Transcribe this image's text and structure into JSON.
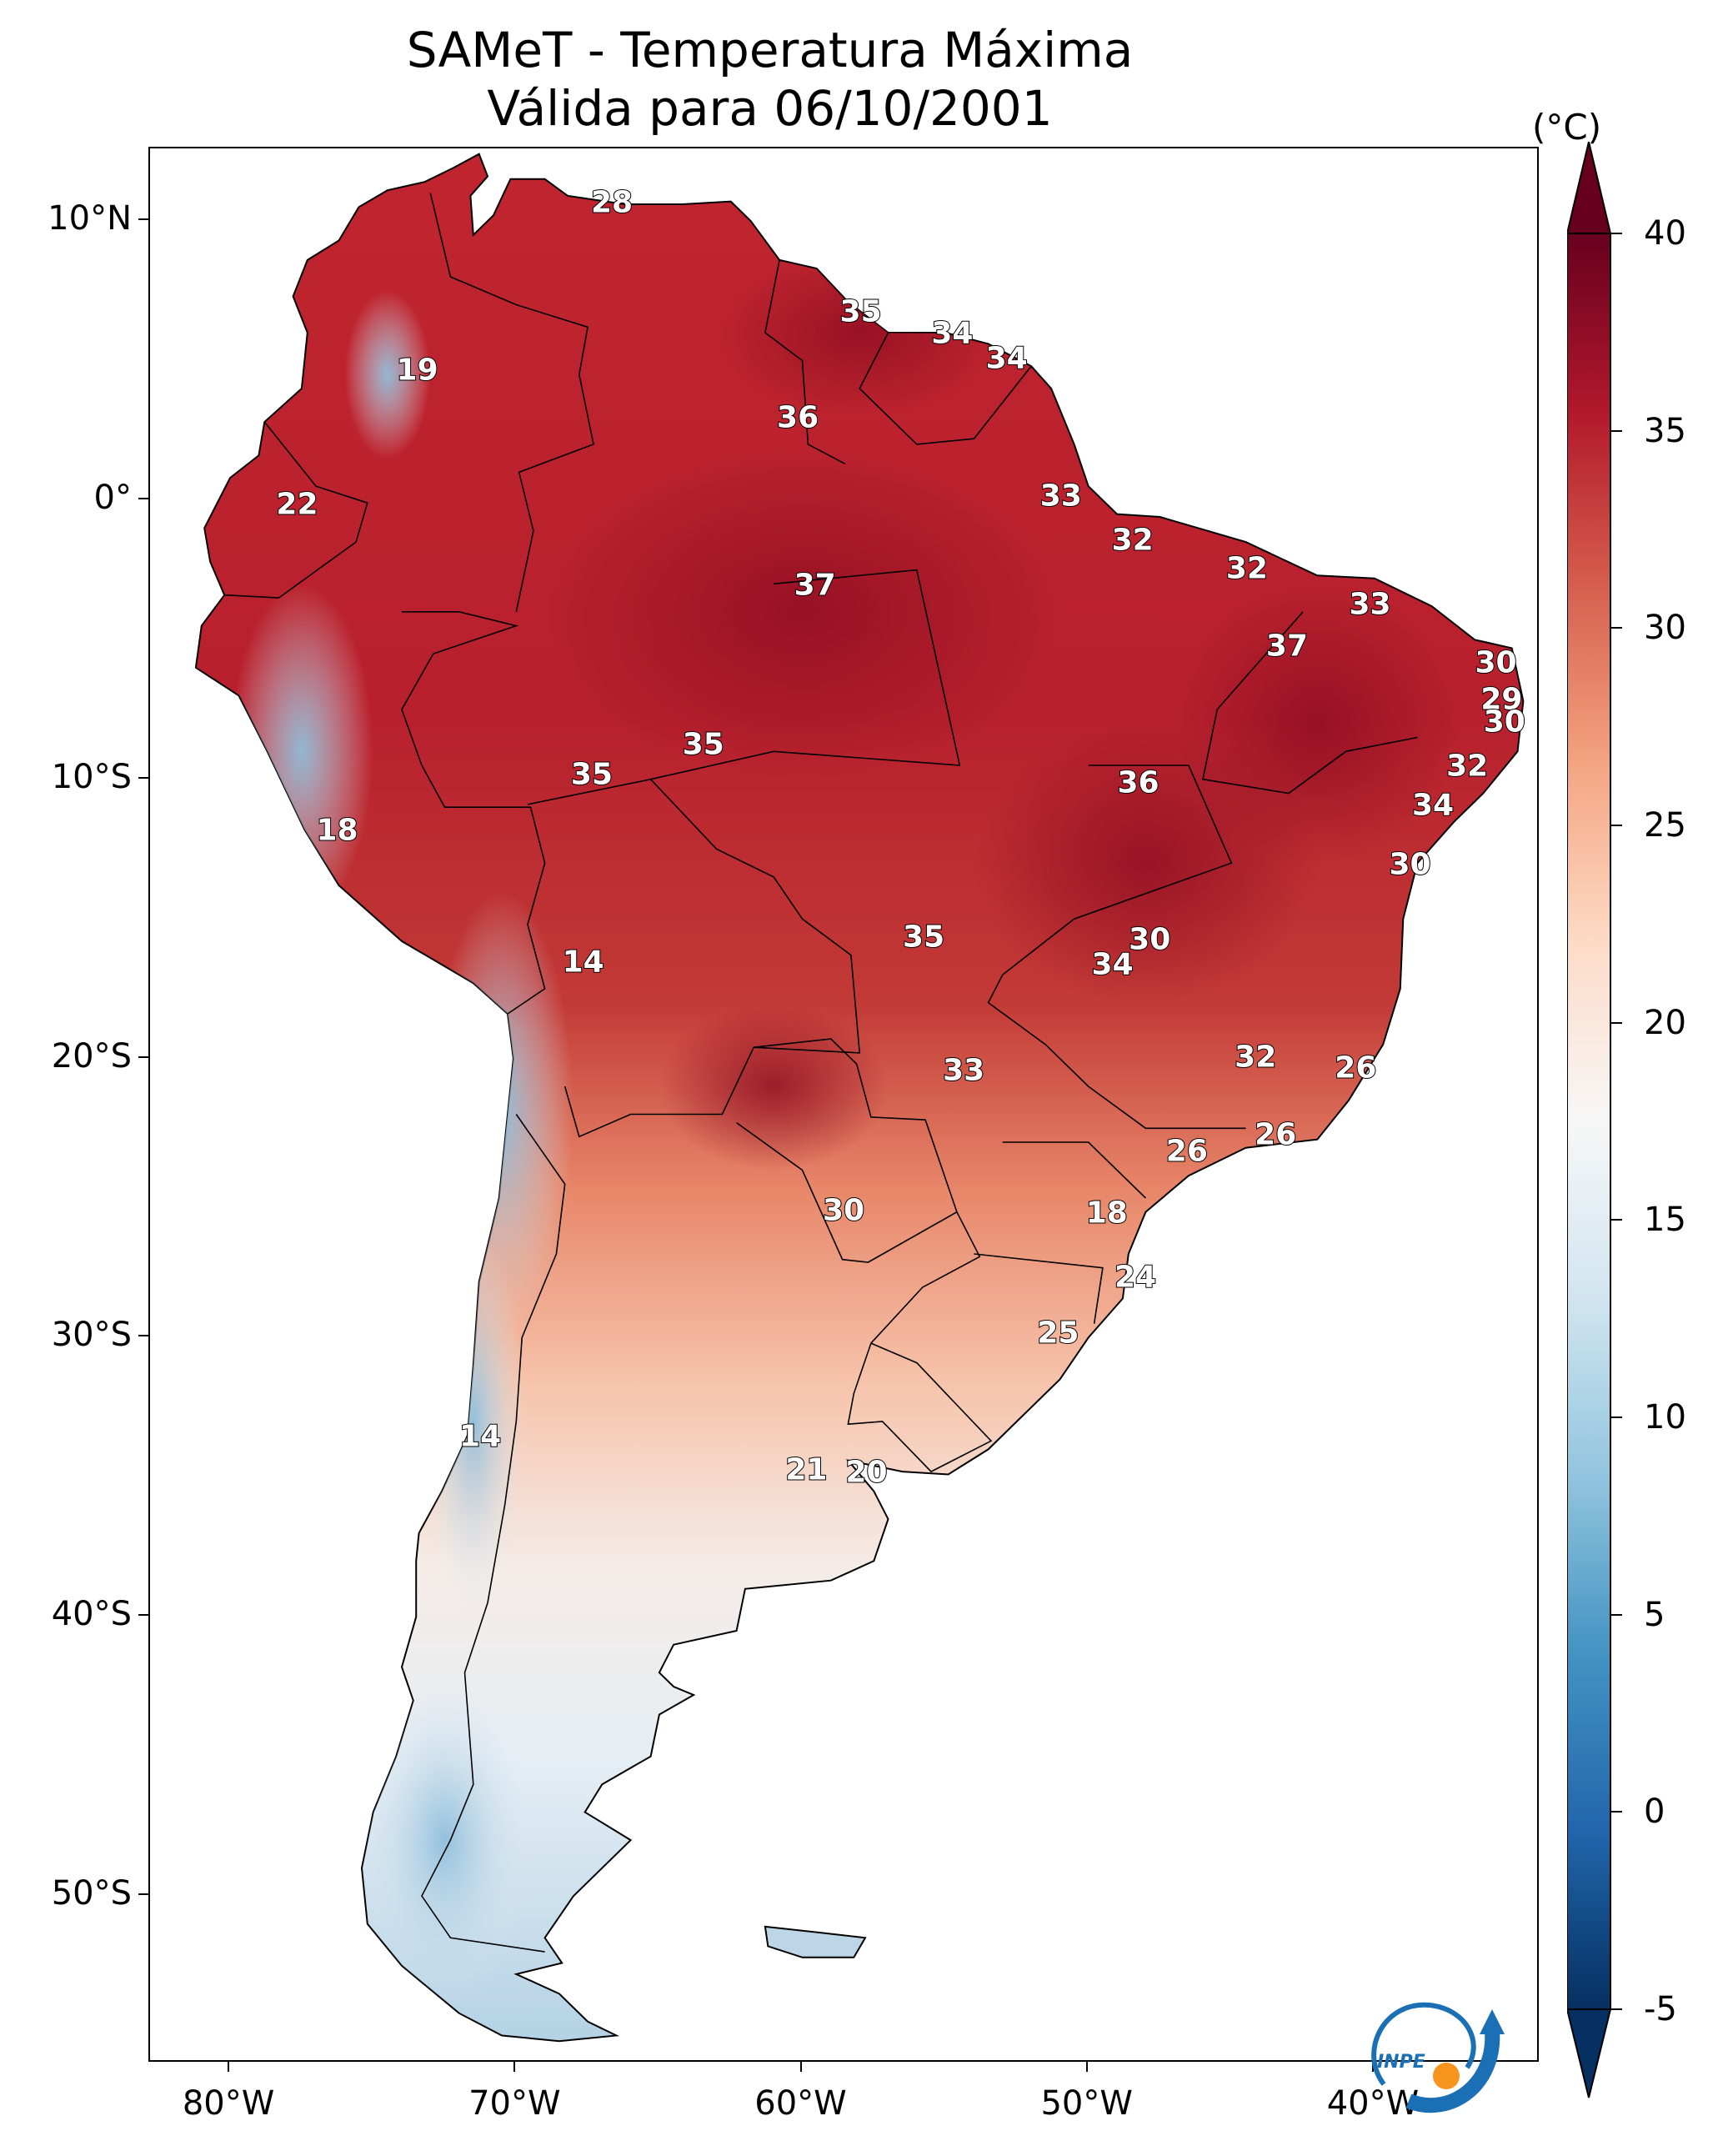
{
  "title": {
    "line1": "SAMeT - Temperatura Máxima",
    "line2": "Válida para 06/10/2001"
  },
  "map": {
    "region": "South America",
    "projection": "PlateCarree",
    "lon_range": [
      -82.8,
      -34.2
    ],
    "lat_range": [
      -56.0,
      12.6
    ],
    "lat_ticks": [
      {
        "value": 10,
        "label": "10°N"
      },
      {
        "value": 0,
        "label": "0°"
      },
      {
        "value": -10,
        "label": "10°S"
      },
      {
        "value": -20,
        "label": "20°S"
      },
      {
        "value": -30,
        "label": "30°S"
      },
      {
        "value": -40,
        "label": "40°S"
      },
      {
        "value": -50,
        "label": "50°S"
      }
    ],
    "lon_ticks": [
      {
        "value": -80,
        "label": "80°W"
      },
      {
        "value": -70,
        "label": "70°W"
      },
      {
        "value": -60,
        "label": "60°W"
      },
      {
        "value": -50,
        "label": "50°W"
      },
      {
        "value": -40,
        "label": "40°W"
      }
    ],
    "contour_labels": [
      {
        "text": "28",
        "lon": -66.6,
        "lat": 10.6
      },
      {
        "text": "35",
        "lon": -57.9,
        "lat": 6.7
      },
      {
        "text": "34",
        "lon": -54.7,
        "lat": 5.9
      },
      {
        "text": "34",
        "lon": -52.8,
        "lat": 5.0
      },
      {
        "text": "19",
        "lon": -73.4,
        "lat": 4.6
      },
      {
        "text": "36",
        "lon": -60.1,
        "lat": 2.9
      },
      {
        "text": "33",
        "lon": -50.9,
        "lat": 0.1
      },
      {
        "text": "22",
        "lon": -77.6,
        "lat": -0.2
      },
      {
        "text": "32",
        "lon": -48.4,
        "lat": -1.5
      },
      {
        "text": "32",
        "lon": -44.4,
        "lat": -2.5
      },
      {
        "text": "37",
        "lon": -59.5,
        "lat": -3.1
      },
      {
        "text": "33",
        "lon": -40.1,
        "lat": -3.8
      },
      {
        "text": "37",
        "lon": -43.0,
        "lat": -5.3
      },
      {
        "text": "30",
        "lon": -35.7,
        "lat": -5.9
      },
      {
        "text": "29",
        "lon": -35.5,
        "lat": -7.2
      },
      {
        "text": "30",
        "lon": -35.4,
        "lat": -8.0
      },
      {
        "text": "35",
        "lon": -63.4,
        "lat": -8.8
      },
      {
        "text": "35",
        "lon": -67.3,
        "lat": -9.9
      },
      {
        "text": "32",
        "lon": -36.7,
        "lat": -9.6
      },
      {
        "text": "36",
        "lon": -48.2,
        "lat": -10.2
      },
      {
        "text": "34",
        "lon": -37.9,
        "lat": -11.0
      },
      {
        "text": "18",
        "lon": -76.2,
        "lat": -11.9
      },
      {
        "text": "30",
        "lon": -38.7,
        "lat": -13.1
      },
      {
        "text": "35",
        "lon": -55.7,
        "lat": -15.7
      },
      {
        "text": "30",
        "lon": -47.8,
        "lat": -15.8
      },
      {
        "text": "34",
        "lon": -49.1,
        "lat": -16.7
      },
      {
        "text": "14",
        "lon": -67.6,
        "lat": -16.6
      },
      {
        "text": "32",
        "lon": -44.1,
        "lat": -20.0
      },
      {
        "text": "26",
        "lon": -40.6,
        "lat": -20.4
      },
      {
        "text": "33",
        "lon": -54.3,
        "lat": -20.5
      },
      {
        "text": "26",
        "lon": -46.5,
        "lat": -23.4
      },
      {
        "text": "26",
        "lon": -43.4,
        "lat": -22.8
      },
      {
        "text": "30",
        "lon": -58.5,
        "lat": -25.5
      },
      {
        "text": "18",
        "lon": -49.3,
        "lat": -25.6
      },
      {
        "text": "24",
        "lon": -48.3,
        "lat": -27.9
      },
      {
        "text": "25",
        "lon": -51.0,
        "lat": -29.9
      },
      {
        "text": "14",
        "lon": -71.2,
        "lat": -33.6
      },
      {
        "text": "21",
        "lon": -59.8,
        "lat": -34.8
      },
      {
        "text": "20",
        "lon": -57.7,
        "lat": -34.9
      }
    ]
  },
  "colorbar": {
    "unit": "(°C)",
    "min": -5,
    "max": 40,
    "extend": "both",
    "colormap": "RdBu_r",
    "ticks": [
      -5,
      0,
      5,
      10,
      15,
      20,
      25,
      30,
      35,
      40
    ],
    "tick_labels": [
      "-5",
      "0",
      "5",
      "10",
      "15",
      "20",
      "25",
      "30",
      "35",
      "40"
    ],
    "stops": [
      "#053061",
      "#2166ac",
      "#4393c3",
      "#92c5de",
      "#d1e5f0",
      "#f7f7f7",
      "#fddbc7",
      "#f4a582",
      "#d6604d",
      "#b2182b",
      "#67001f"
    ]
  },
  "logo": {
    "text": "INPE",
    "colors": [
      "#1a6fb5",
      "#f7941d"
    ]
  }
}
